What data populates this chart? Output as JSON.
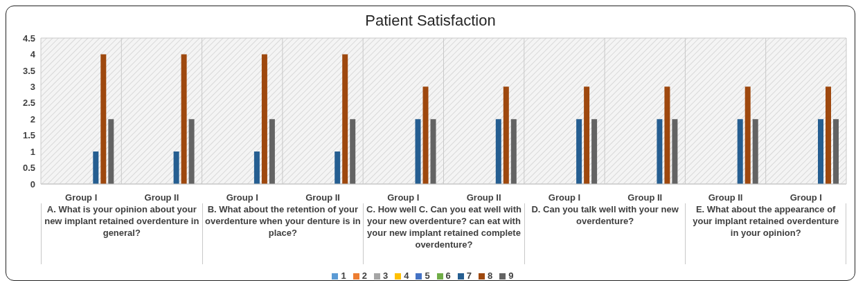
{
  "chart_data": {
    "type": "bar",
    "title": "Patient Satisfaction",
    "categories": [
      "Group I",
      "Group II",
      "Group I",
      "Group II",
      "Group I",
      "Group II",
      "Group I",
      "Group II",
      "Group II",
      "Group I"
    ],
    "series": [
      {
        "name": "1",
        "color": "#5b9bd5",
        "values": [
          0,
          0,
          0,
          0,
          0,
          0,
          0,
          0,
          0,
          0
        ]
      },
      {
        "name": "2",
        "color": "#ed7d31",
        "values": [
          0,
          0,
          0,
          0,
          0,
          0,
          0,
          0,
          0,
          0
        ]
      },
      {
        "name": "3",
        "color": "#a5a5a5",
        "values": [
          0,
          0,
          0,
          0,
          0,
          0,
          0,
          0,
          0,
          0
        ]
      },
      {
        "name": "4",
        "color": "#ffc000",
        "values": [
          0,
          0,
          0,
          0,
          0,
          0,
          0,
          0,
          0,
          0
        ]
      },
      {
        "name": "5",
        "color": "#4472c4",
        "values": [
          0,
          0,
          0,
          0,
          0,
          0,
          0,
          0,
          0,
          0
        ]
      },
      {
        "name": "6",
        "color": "#70ad47",
        "values": [
          0,
          0,
          0,
          0,
          0,
          0,
          0,
          0,
          0,
          0
        ]
      },
      {
        "name": "7",
        "color": "#255e91",
        "values": [
          1,
          1,
          1,
          1,
          2,
          2,
          2,
          2,
          2,
          2
        ]
      },
      {
        "name": "8",
        "color": "#9e480e",
        "values": [
          4,
          4,
          4,
          4,
          3,
          3,
          3,
          3,
          3,
          3
        ]
      },
      {
        "name": "9",
        "color": "#636363",
        "values": [
          2,
          2,
          2,
          2,
          2,
          2,
          2,
          2,
          2,
          2
        ]
      }
    ],
    "ylim": [
      0,
      4.5
    ],
    "yticks": [
      0,
      0.5,
      1,
      1.5,
      2,
      2.5,
      3,
      3.5,
      4,
      4.5
    ],
    "grid": true,
    "legend": "bottom",
    "annotations": [
      "A.  What is your opinion about your new implant retained overdenture in general?",
      "B.  What about the retention of your overdenture when your denture is in place?",
      "C. How well C. Can you eat well with your new overdenture? can eat with your new implant retained complete overdenture?",
      "D. Can you talk well with your new overdenture?",
      "E. What about the appearance of your implant retained overdenture in your opinion?"
    ]
  }
}
